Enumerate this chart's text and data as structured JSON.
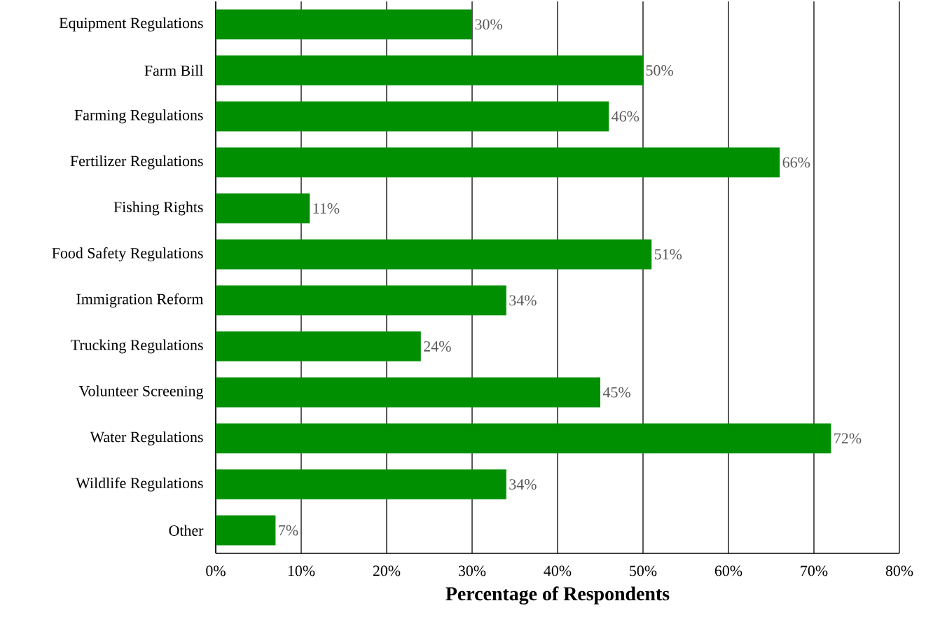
{
  "chart_data": {
    "type": "bar",
    "orientation": "horizontal",
    "xlabel": "Percentage of Respondents",
    "categories": [
      "Equipment Regulations",
      "Farm Bill",
      "Farming Regulations",
      "Fertilizer Regulations",
      "Fishing Rights",
      "Food Safety Regulations",
      "Immigration Reform",
      "Trucking Regulations",
      "Volunteer Screening",
      "Water Regulations",
      "Wildlife Regulations",
      "Other"
    ],
    "values": [
      30,
      50,
      46,
      66,
      11,
      51,
      34,
      24,
      45,
      72,
      34,
      7
    ],
    "value_labels": [
      "30%",
      "50%",
      "46%",
      "66%",
      "11%",
      "51%",
      "34%",
      "24%",
      "45%",
      "72%",
      "34%",
      "7%"
    ],
    "color": "#008f00",
    "xlim": [
      0,
      80
    ],
    "xticks": [
      {
        "value": 0,
        "label": "0%"
      },
      {
        "value": 10,
        "label": "10%"
      },
      {
        "value": 20,
        "label": "20%"
      },
      {
        "value": 30,
        "label": "30%"
      },
      {
        "value": 40,
        "label": "40%"
      },
      {
        "value": 50,
        "label": "50%"
      },
      {
        "value": 60,
        "label": "60%"
      },
      {
        "value": 70,
        "label": "70%"
      },
      {
        "value": 80,
        "label": "80%"
      }
    ],
    "grid": "x"
  }
}
